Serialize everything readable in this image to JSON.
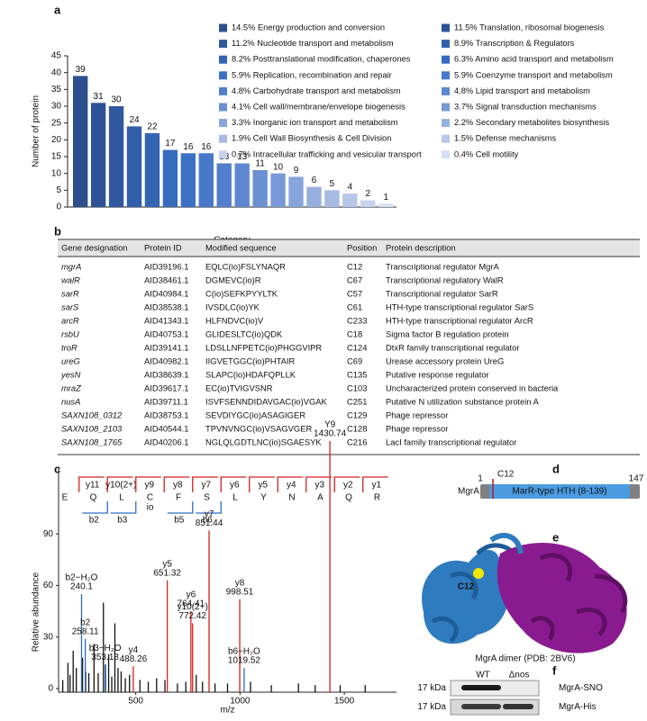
{
  "panel_labels": [
    "a",
    "b",
    "c",
    "d",
    "e",
    "f"
  ],
  "chart_data": [
    {
      "type": "bar",
      "ylabel": "Number of protein",
      "xlabel": "Category",
      "values": [
        39,
        31,
        30,
        24,
        22,
        17,
        16,
        16,
        13,
        13,
        11,
        10,
        9,
        6,
        5,
        4,
        2,
        1
      ],
      "legend": [
        {
          "name": "14.5% Energy production and conversion",
          "color": "#2c4f8d"
        },
        {
          "name": "11.5% Translation, ribosomal biogenesis",
          "color": "#2d5396"
        },
        {
          "name": "11.2% Nucleotide transport and metabolism",
          "color": "#2f589f"
        },
        {
          "name": "8.9% Transcription & Regulators",
          "color": "#315ea9"
        },
        {
          "name": "8.2% Posttranslational modification, chaperones",
          "color": "#3464b4"
        },
        {
          "name": "6.3% Amino acid transport and metabolism",
          "color": "#376bbe"
        },
        {
          "name": "5.9% Replication, recombination and repair",
          "color": "#3c71c6"
        },
        {
          "name": "5.9% Coenzyme transport and metabolism",
          "color": "#4677c9"
        },
        {
          "name": "4.8% Carbohydrate transport and metabolism",
          "color": "#527fcc"
        },
        {
          "name": "4.8% Lipid transport and metabolism",
          "color": "#5e87cf"
        },
        {
          "name": "4.1% Cell wall/membrane/envelope biogenesis",
          "color": "#6b90d3"
        },
        {
          "name": "3.7% Signal transduction mechanisms",
          "color": "#7899d7"
        },
        {
          "name": "3.3% Inorganic ion transport and metabolism",
          "color": "#87a4db"
        },
        {
          "name": "2.2% Secondary metabolites biosynthesis",
          "color": "#96afdf"
        },
        {
          "name": "1.9% Cell Wall Biosynthesis & Cell Division",
          "color": "#a6bbe4"
        },
        {
          "name": "1.5% Defense mechanisms",
          "color": "#b6c7e9"
        },
        {
          "name": "0.7% Intracellular trafficking and vesicular transport",
          "color": "#c6d3ee"
        },
        {
          "name": "0.4% Cell motility",
          "color": "#d6e0f3"
        }
      ],
      "ylim": [
        0,
        45
      ],
      "yticks": [
        0,
        5,
        10,
        15,
        20,
        25,
        30,
        35,
        40,
        45
      ]
    },
    {
      "type": "spectrum",
      "xlabel": "m/z",
      "ylabel": "Relative abundance",
      "xlim": [
        130,
        1750
      ],
      "xticks": [
        500,
        1000,
        1500
      ],
      "ylim": [
        0,
        155
      ],
      "yticks": [
        0,
        30,
        60,
        90
      ],
      "sequence": [
        "E",
        "Q",
        "L",
        "C",
        "F",
        "S",
        "L",
        "Y",
        "N",
        "A",
        "Q",
        "R"
      ],
      "modification_label": "io",
      "y_ions": [
        "y11",
        "y10(2+)",
        "y9",
        "y8",
        "y7",
        "y6",
        "y5",
        "y4",
        "y3",
        "y2",
        "y1"
      ],
      "b_ions": [
        "b2",
        "b3",
        "b5",
        "b6"
      ],
      "series": [
        {
          "color": "#111111",
          "x": [
            150,
            175,
            185,
            200,
            215,
            245,
            260,
            275,
            300,
            320,
            345,
            355,
            370,
            385,
            400,
            415,
            430,
            450,
            470,
            520,
            560,
            600,
            640,
            700,
            740,
            790,
            820,
            880,
            940,
            1050,
            1150,
            1280,
            1360,
            1480,
            1600
          ],
          "values": [
            5,
            15,
            8,
            22,
            12,
            18,
            10,
            9,
            26,
            9,
            50,
            14,
            20,
            7,
            38,
            12,
            10,
            6,
            8,
            5,
            4,
            6,
            5,
            3,
            4,
            8,
            4,
            3,
            3,
            4,
            2,
            3,
            2,
            2,
            2
          ]
        },
        {
          "color": "#d62020",
          "x": [
            1430.74,
            851.44,
            651.32,
            764.41,
            772.42,
            998.51,
            488.26
          ],
          "values": [
            144,
            92,
            63,
            45,
            38,
            52,
            13
          ],
          "labels": [
            "Y9",
            "y7",
            "y5",
            "y6",
            "y10(2+)",
            "y8",
            "y4"
          ]
        },
        {
          "color": "#2e6fc0",
          "x": [
            240.1,
            258.11,
            353.18,
            1019.52
          ],
          "values": [
            55,
            29,
            14,
            12
          ],
          "labels": [
            "b2−H₂O",
            "b2",
            "b3−H₂O",
            "b6−H₂O"
          ]
        }
      ]
    }
  ],
  "table": {
    "columns": [
      "Gene designation",
      "Protein ID",
      "Modified sequence",
      "Position",
      "Protein description"
    ],
    "rows": [
      [
        "mgrA",
        "AID39196.1",
        "EQLC(io)FSLYNAQR",
        "C12",
        "Transcriptional regulator MgrA"
      ],
      [
        "walR",
        "AID38461.1",
        "DGMEVC(io)R",
        "C67",
        "Transcriptional regulatory WalR"
      ],
      [
        "sarR",
        "AID40984.1",
        "C(io)SEFKPYYLTK",
        "C57",
        "Transcriptional regulator SarR"
      ],
      [
        "sarS",
        "AID38538.1",
        "IVSDLC(io)YK",
        "C61",
        "HTH-type transcriptional regulator SarS"
      ],
      [
        "arcR",
        "AID41343.1",
        "HLFNDVC(io)V",
        "C233",
        "HTH-type transcriptional regulator ArcR"
      ],
      [
        "rsbU",
        "AID40753.1",
        "GLIDESLTC(io)QDK",
        "C18",
        "Sigma factor B regulation protein"
      ],
      [
        "troR",
        "AID39141.1",
        "LDSLLNFPETC(io)PHGGVIPR",
        "C124",
        "DtxR family transcriptional regulator"
      ],
      [
        "ureG",
        "AID40982.1",
        "IIGVETGGC(io)PHTAIR",
        "C69",
        "Urease accessory protein UreG"
      ],
      [
        "yesN",
        "AID38639.1",
        "SLAPC(io)HDAFQPLLK",
        "C135",
        "Putative response regulator"
      ],
      [
        "mraZ",
        "AID39617.1",
        "EC(io)TVIGVSNR",
        "C103",
        "Uncharacterized protein conserved in bacteria"
      ],
      [
        "nusA",
        "AID39711.1",
        "ISVFSENNDIDAVGAC(io)VGAK",
        "C251",
        "Putative N utilization substance protein A"
      ],
      [
        "SAXN108_0312",
        "AID38753.1",
        "SEVDIYGC(io)ASAGIGER",
        "C129",
        "Phage repressor"
      ],
      [
        "SAXN108_2103",
        "AID40544.1",
        "TPVNVNGC(io)VSAGVGER",
        "C128",
        "Phage repressor"
      ],
      [
        "SAXN108_1765",
        "AID40206.1",
        "NGLQLGDTLNC(io)SGAESYK",
        "C216",
        "LacI family transcriptional regulator"
      ]
    ]
  },
  "domain_diagram": {
    "protein": "MgrA",
    "start": "1",
    "end": "147",
    "site": "C12",
    "domain": "MarR-type HTH (8-139)"
  },
  "structure": {
    "site_label": "C12",
    "caption": "MgrA dimer (PDB: 2BV6)"
  },
  "blot": {
    "lanes": [
      "WT",
      "Δnos"
    ],
    "rows": [
      {
        "marker": "17 kDa",
        "label": "MgrA-SNO"
      },
      {
        "marker": "17 kDa",
        "label": "MgrA-His"
      }
    ]
  }
}
